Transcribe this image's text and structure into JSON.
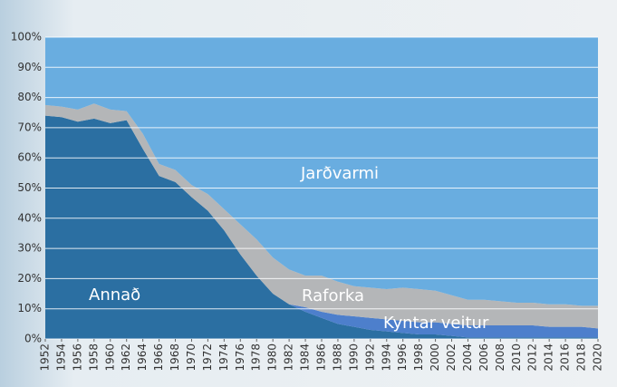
{
  "chart_data": {
    "type": "stacked_area",
    "x": [
      1952,
      1954,
      1956,
      1958,
      1960,
      1962,
      1964,
      1966,
      1968,
      1970,
      1972,
      1974,
      1976,
      1978,
      1980,
      1982,
      1984,
      1986,
      1988,
      1990,
      1992,
      1994,
      1996,
      1998,
      2000,
      2002,
      2004,
      2006,
      2008,
      2010,
      2012,
      2014,
      2016,
      2018,
      2020
    ],
    "series": [
      {
        "name": "Annað",
        "color": "#2b6fa2",
        "values": [
          74,
          73.5,
          72,
          73,
          71.5,
          72.5,
          63,
          54,
          52,
          47,
          42.5,
          36,
          28,
          21,
          15,
          11.5,
          9,
          7,
          5,
          4,
          3,
          2.5,
          2,
          1.5,
          1.5,
          1,
          0.5,
          0.5,
          0.5,
          0.5,
          0.5,
          0.5,
          0.5,
          0.5,
          0.5
        ]
      },
      {
        "name": "Kyntar veitur",
        "color": "#4d7fcc",
        "values": [
          0,
          0,
          0,
          0,
          0,
          0,
          0,
          0,
          0,
          0,
          0,
          0,
          0,
          0,
          0,
          0,
          1.5,
          2,
          3,
          3.5,
          4,
          4,
          4,
          4,
          4,
          4,
          4,
          4,
          4,
          4,
          4,
          3.5,
          3.5,
          3.5,
          3
        ]
      },
      {
        "name": "Raforka",
        "color": "#b4b6b8",
        "values": [
          3.5,
          3.5,
          4,
          5,
          4.5,
          3,
          5,
          4,
          4,
          4,
          5.5,
          7,
          10,
          12,
          12,
          11.5,
          10.5,
          12,
          11,
          10,
          10,
          10,
          11,
          11,
          10.5,
          9.5,
          8.5,
          8.5,
          8,
          7.5,
          7.5,
          7.5,
          7.5,
          7,
          7.5
        ]
      },
      {
        "name": "Jarðvarmi",
        "color": "#69ade0",
        "values": [
          22.5,
          23,
          24,
          22,
          24,
          24.5,
          32,
          42,
          44,
          49,
          52,
          57,
          62,
          67,
          73,
          77,
          79,
          79,
          81,
          82.5,
          83,
          83.5,
          83,
          83.5,
          84,
          85.5,
          87,
          87,
          87.5,
          88,
          88,
          88.5,
          88.5,
          89,
          89
        ]
      }
    ],
    "xlim": [
      1952,
      2020
    ],
    "xticks": [
      1952,
      1954,
      1956,
      1958,
      1960,
      1962,
      1964,
      1966,
      1968,
      1970,
      1972,
      1974,
      1976,
      1978,
      1980,
      1982,
      1984,
      1986,
      1988,
      1990,
      1992,
      1994,
      1996,
      1998,
      2000,
      2002,
      2004,
      2006,
      2008,
      2010,
      2012,
      2014,
      2016,
      2018,
      2020
    ],
    "ylim": [
      0,
      100
    ],
    "yticks": [
      {
        "value": 0,
        "label": "0%"
      },
      {
        "value": 10,
        "label": "10%"
      },
      {
        "value": 20,
        "label": "20%"
      },
      {
        "value": 30,
        "label": "30%"
      },
      {
        "value": 40,
        "label": "40%"
      },
      {
        "value": 50,
        "label": "50%"
      },
      {
        "value": 60,
        "label": "60%"
      },
      {
        "value": 70,
        "label": "70%"
      },
      {
        "value": 80,
        "label": "80%"
      },
      {
        "value": 90,
        "label": "90%"
      },
      {
        "value": 100,
        "label": "100%"
      }
    ],
    "grid": true
  }
}
